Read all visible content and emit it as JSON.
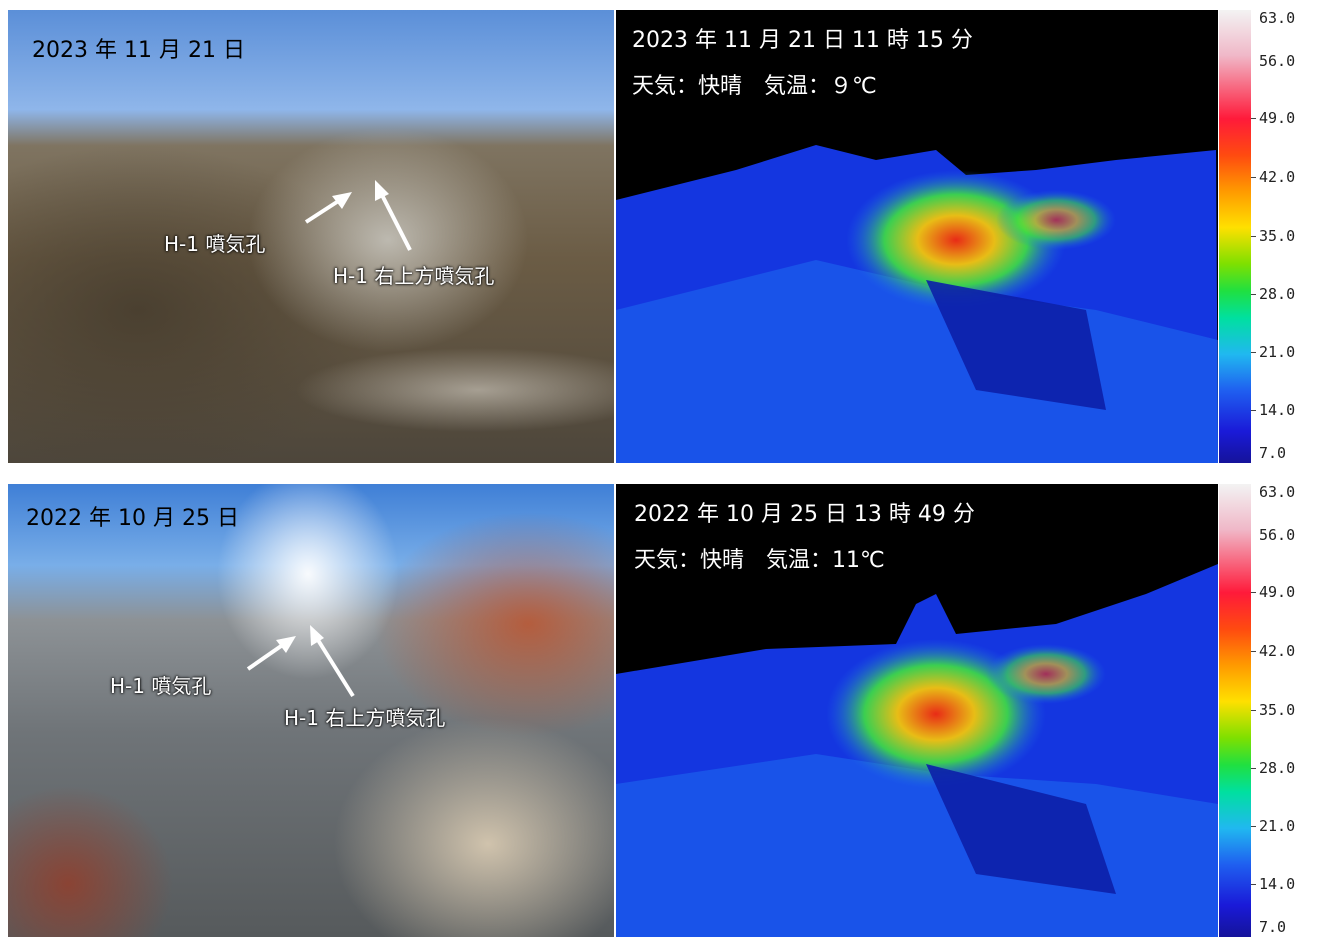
{
  "panels": {
    "top_photo": {
      "date": "2023 年 11 月 21 日",
      "vent_a": "H-1 噴気孔",
      "vent_b": "H-1 右上方噴気孔"
    },
    "top_thermal": {
      "datetime": "2023 年 11 月 21 日 11 時 15 分",
      "weather": "天気：快晴　気温：９℃"
    },
    "bottom_photo": {
      "date": "2022 年 10 月 25 日",
      "vent_a": "H-1 噴気孔",
      "vent_b": "H-1 右上方噴気孔"
    },
    "bottom_thermal": {
      "datetime": "2022 年 10 月 25 日 13 時 49 分",
      "weather": "天気：快晴　気温：11℃"
    }
  },
  "color_scale": {
    "ticks": [
      "63.0",
      "56.0",
      "49.0",
      "42.0",
      "35.0",
      "28.0",
      "21.0",
      "14.0",
      "7.0"
    ],
    "unit": "℃",
    "colors": [
      "#f3f3f3",
      "#ff1a3a",
      "#ff9a00",
      "#ffe000",
      "#20e040",
      "#20b8f0",
      "#1a1ad8",
      "#15139a"
    ]
  }
}
